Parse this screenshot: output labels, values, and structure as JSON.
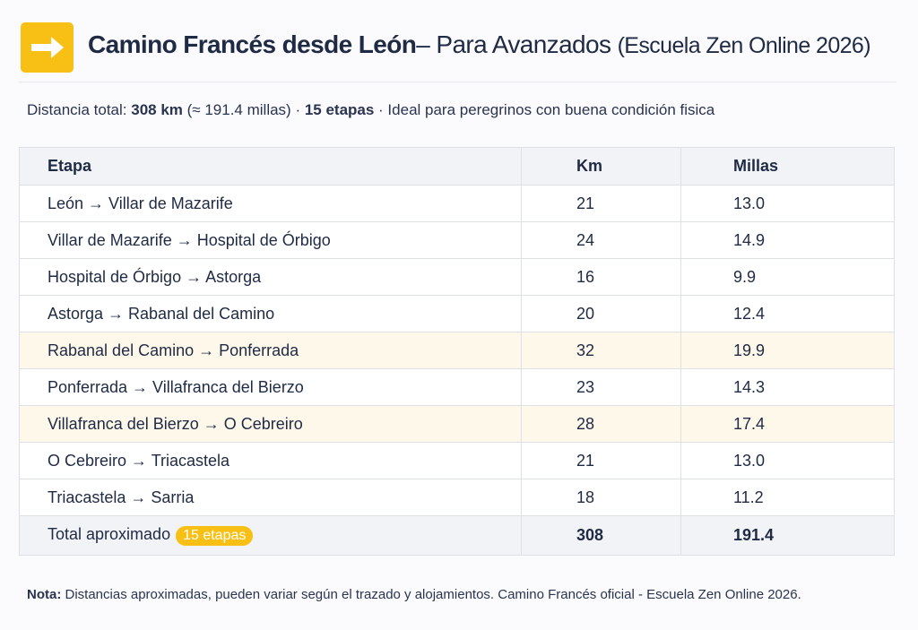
{
  "header": {
    "icon": "arrow-right-icon",
    "title_main": "Camino Francés desde León",
    "title_dash": "– Para Avanzados ",
    "title_paren": "(Escuela Zen Online 2026)"
  },
  "summary": {
    "prefix": "Distancia total: ",
    "distance": "308 km",
    "miles": " (≈ 191.4 millas) · ",
    "stages": "15 etapas",
    "suffix": " · Ideal para peregrinos con buena condición fisica"
  },
  "table": {
    "headers": [
      "Etapa",
      "Km",
      "Millas"
    ],
    "rows": [
      {
        "stage": "León → Villar de Mazarife",
        "km": "21",
        "miles": "13.0"
      },
      {
        "stage": "Villar de Mazarife → Hospital de Órbigo",
        "km": "24",
        "miles": "14.9"
      },
      {
        "stage": "Hospital de Órbigo → Astorga",
        "km": "16",
        "miles": "9.9"
      },
      {
        "stage": "Astorga → Rabanal del Camino",
        "km": "20",
        "miles": "12.4"
      },
      {
        "stage": "Rabanal del Camino → Ponferrada",
        "km": "32",
        "miles": "19.9"
      },
      {
        "stage": "Ponferrada → Villafranca del Bierzo",
        "km": "23",
        "miles": "14.3"
      },
      {
        "stage": "Villafranca del Bierzo → O Cebreiro",
        "km": "28",
        "miles": "17.4"
      },
      {
        "stage": "O Cebreiro → Triacastela",
        "km": "21",
        "miles": "13.0"
      },
      {
        "stage": "Triacastela → Sarria",
        "km": "18",
        "miles": "11.2"
      }
    ],
    "total": {
      "label": "Total aproximado",
      "badge": "15 etapas",
      "km": "308",
      "miles": "191.4"
    }
  },
  "note": {
    "label": "Nota:",
    "text": " Distancias aproximadas, pueden variar según el trazado y alojamientos. Camino Francés oficial - Escuela Zen Online 2026."
  },
  "colors": {
    "accent": "#f8bf14",
    "highlight_row": "#fdf8ea"
  }
}
